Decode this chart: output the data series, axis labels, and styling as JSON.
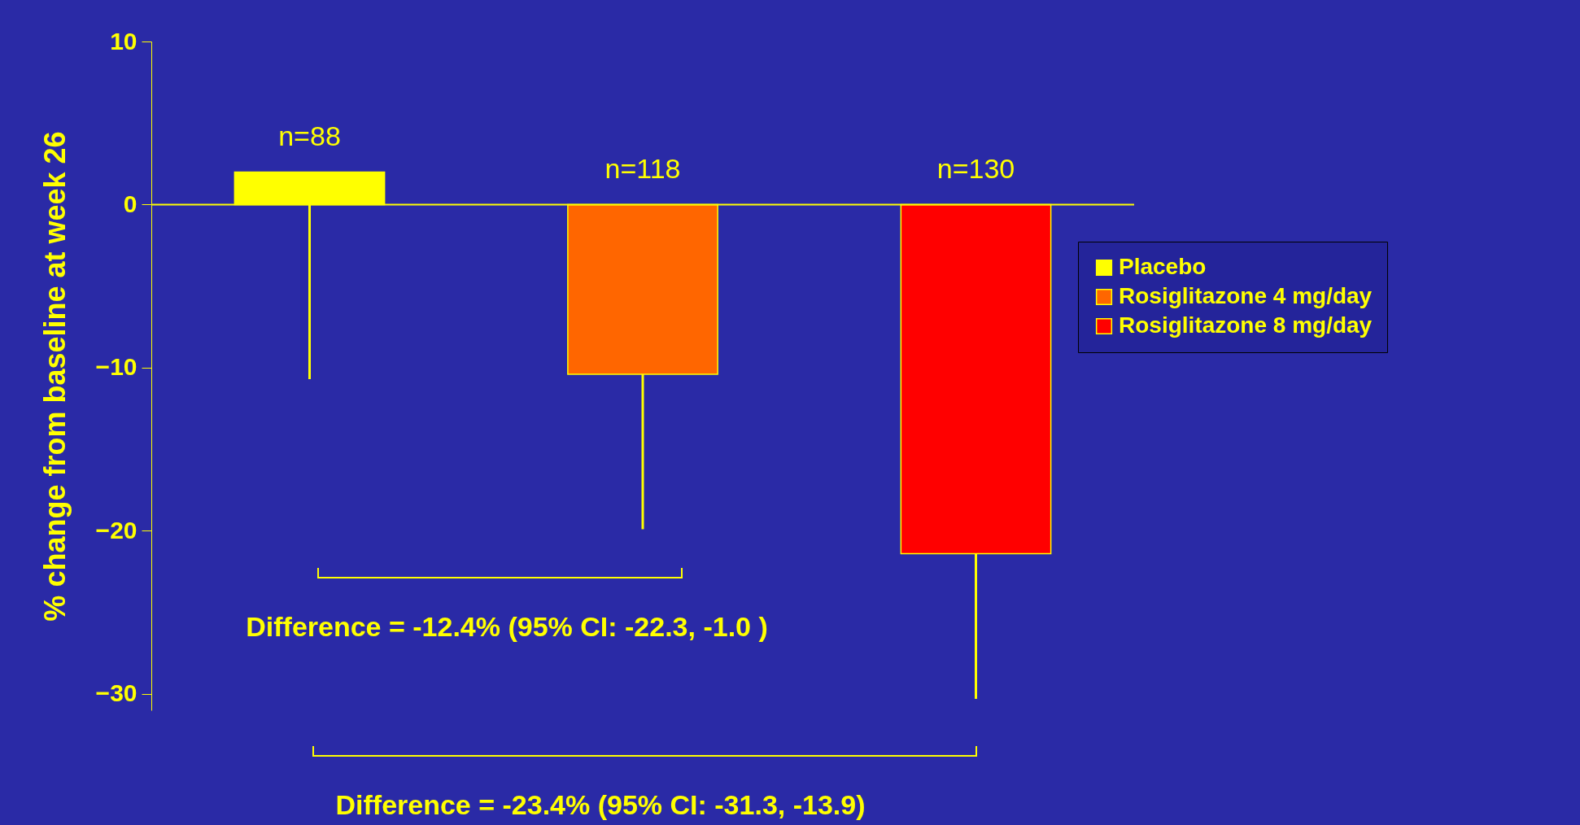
{
  "chart_data": {
    "type": "bar",
    "ylabel": "% change from baseline at week 26",
    "categories": [
      null,
      null,
      null
    ],
    "series": [
      {
        "name": "Placebo",
        "color": "#ffff00",
        "values": [
          2.0,
          null,
          null
        ],
        "errors": [
          [
            -10.7,
            2.0
          ],
          null,
          null
        ]
      },
      {
        "name": "Rosiglitazone 4 mg/day",
        "color": "#ff6600",
        "values": [
          null,
          -10.4,
          null
        ],
        "errors": [
          null,
          [
            -19.9,
            -10.4
          ],
          null
        ]
      },
      {
        "name": "Rosiglitazone 8 mg/day",
        "color": "#ff0000",
        "values": [
          null,
          null,
          -21.4
        ],
        "errors": [
          null,
          null,
          [
            -30.3,
            -21.4
          ]
        ]
      }
    ],
    "ref_lines": [
      {
        "axis": "y",
        "value": 0,
        "color": "#ffff00"
      }
    ],
    "ylim": [
      -31,
      10
    ],
    "yticks": [
      -30,
      -20,
      -10,
      0,
      10
    ],
    "grid": false,
    "legend": "right",
    "annotations": [
      {
        "text": "n=88",
        "y": 2.0
      },
      {
        "text": "n=118",
        "y": 0
      },
      {
        "text": "n=130",
        "y": 0
      },
      "Difference = -12.4% (95% CI: -22.3, -1.0 )",
      "Difference = -23.4%  (95% CI: -31.3, -13.9)"
    ]
  }
}
